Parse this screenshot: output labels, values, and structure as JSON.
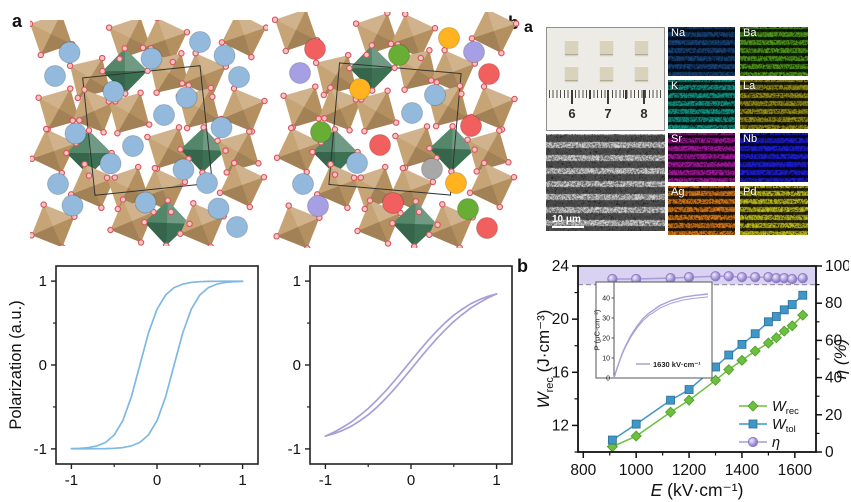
{
  "figure": {
    "left_panel_label": "a",
    "right_panel_label_partial": "b",
    "right_panel_label": "a",
    "chart_panel_label": "b"
  },
  "crystal": {
    "octahedra_color": "#c09a66",
    "octahedra_light": "#dcc094",
    "octahedra_dark": "#9b7848",
    "green_octahedra_color": "#41795a",
    "oxygen_fill": "#f6c2c3",
    "oxygen_stroke": "#d8555c",
    "unit_cell_stroke": "#333333",
    "panel1_a_site_color": "#93badd",
    "panel2_a_site_colors": [
      "#93badd",
      "#f25f5f",
      "#ffb31f",
      "#a79fe3",
      "#a8a8a8",
      "#68ae35"
    ]
  },
  "eds": {
    "photo": {
      "ruler_numbers": [
        "6",
        "7",
        "8"
      ],
      "chip_color": "#d9d2bd"
    },
    "sem": {
      "scale_label": "10 μm"
    },
    "maps": [
      {
        "element": "Na",
        "color": "#1a4882"
      },
      {
        "element": "Ba",
        "color": "#55a21e"
      },
      {
        "element": "K",
        "color": "#12a08e"
      },
      {
        "element": "La",
        "color": "#a0981a"
      },
      {
        "element": "Sr",
        "color": "#b01aaa"
      },
      {
        "element": "Nb",
        "color": "#2020e8"
      },
      {
        "element": "Ag",
        "color": "#e8821a"
      },
      {
        "element": "Pd",
        "color": "#ccc820"
      }
    ]
  },
  "chart_data": [
    {
      "id": "pe_loop_normal",
      "type": "line",
      "ylabel": "Polarization (a.u.)",
      "xlim": [
        -1.18,
        1.18
      ],
      "ylim": [
        -1.18,
        1.18
      ],
      "xticks": [
        -1,
        0,
        1
      ],
      "yticks": [
        -1,
        0,
        1
      ],
      "color": "#7db9e3",
      "x": [
        -1,
        -0.9,
        -0.8,
        -0.7,
        -0.6,
        -0.5,
        -0.4,
        -0.3,
        -0.2,
        -0.1,
        0,
        0.1,
        0.2,
        0.3,
        0.4,
        0.5,
        0.6,
        0.7,
        0.8,
        0.9,
        1
      ],
      "series": [
        {
          "name": "branch_up",
          "y": [
            -0.997,
            -0.993,
            -0.984,
            -0.964,
            -0.922,
            -0.834,
            -0.664,
            -0.38,
            0,
            0.38,
            0.664,
            0.834,
            0.922,
            0.964,
            0.984,
            0.993,
            0.997,
            0.998,
            0.999,
            0.999,
            0.999
          ]
        },
        {
          "name": "branch_down",
          "y": [
            -0.999,
            -0.999,
            -0.999,
            -0.998,
            -0.997,
            -0.993,
            -0.984,
            -0.964,
            -0.922,
            -0.834,
            -0.664,
            -0.38,
            0,
            0.38,
            0.664,
            0.834,
            0.922,
            0.964,
            0.984,
            0.993,
            0.997
          ]
        }
      ]
    },
    {
      "id": "pe_loop_slim",
      "type": "line",
      "ylabel": "",
      "xlim": [
        -1.18,
        1.18
      ],
      "ylim": [
        -1.18,
        1.18
      ],
      "xticks": [
        -1,
        0,
        1
      ],
      "yticks": [
        -1,
        0,
        1
      ],
      "color": "#a89fd8",
      "x": [
        -1,
        -0.9,
        -0.8,
        -0.7,
        -0.6,
        -0.5,
        -0.4,
        -0.3,
        -0.2,
        -0.1,
        0,
        0.1,
        0.2,
        0.3,
        0.4,
        0.5,
        0.6,
        0.7,
        0.8,
        0.9,
        1
      ],
      "series": [
        {
          "name": "branch_up",
          "y": [
            -0.848,
            -0.8,
            -0.744,
            -0.68,
            -0.603,
            -0.518,
            -0.42,
            -0.313,
            -0.197,
            -0.075,
            0.05,
            0.174,
            0.293,
            0.404,
            0.504,
            0.593,
            0.667,
            0.731,
            0.78,
            0.819,
            0.848
          ]
        },
        {
          "name": "branch_down",
          "y": [
            -0.848,
            -0.819,
            -0.78,
            -0.731,
            -0.667,
            -0.593,
            -0.504,
            -0.404,
            -0.293,
            -0.174,
            -0.05,
            0.075,
            0.197,
            0.313,
            0.42,
            0.518,
            0.603,
            0.68,
            0.744,
            0.8,
            0.848
          ]
        }
      ]
    },
    {
      "id": "energy_storage",
      "type": "line",
      "panel_label": "b",
      "xlabel_parts": {
        "pre": "E",
        "post": " (kV·cm⁻¹)"
      },
      "ylabel_left_parts": {
        "pre": "W",
        "sub": "rec",
        "post": " (J·cm⁻³)"
      },
      "ylabel_right": "η (%)",
      "xlim": [
        780,
        1680
      ],
      "ylim_left": [
        10,
        24
      ],
      "ylim_right": [
        0,
        100
      ],
      "xticks": [
        800,
        1000,
        1200,
        1400,
        1600
      ],
      "yticks_left": [
        12,
        16,
        20,
        24
      ],
      "yticks_right": [
        0,
        20,
        40,
        60,
        80,
        100
      ],
      "band_right_axis": [
        90,
        100
      ],
      "band_color": "#d9d2f1",
      "dashed_line_right_axis": 90,
      "x": [
        910,
        1000,
        1130,
        1200,
        1300,
        1350,
        1400,
        1450,
        1500,
        1530,
        1560,
        1590,
        1630
      ],
      "series": [
        {
          "name": "W_rec",
          "axis": "left",
          "marker": "diamond",
          "color": "#6cbf3f",
          "values": [
            10.4,
            11.2,
            13.0,
            13.9,
            15.4,
            16.2,
            16.9,
            17.6,
            18.2,
            18.6,
            19.1,
            19.5,
            20.3
          ]
        },
        {
          "name": "W_tol",
          "axis": "left",
          "marker": "square",
          "color": "#3e97c8",
          "values": [
            10.9,
            12.1,
            13.9,
            14.7,
            16.4,
            17.3,
            18.1,
            18.9,
            19.8,
            20.2,
            20.7,
            21.1,
            21.8
          ]
        },
        {
          "name": "eta",
          "axis": "right",
          "marker": "circle",
          "color": "#a99bd8",
          "values": [
            93,
            93,
            93.5,
            94,
            94.5,
            94.5,
            94,
            94,
            94,
            93.5,
            93.5,
            93,
            93.5
          ]
        }
      ],
      "legend": [
        {
          "main": "W",
          "sub": "rec"
        },
        {
          "main": "W",
          "sub": "tol"
        },
        {
          "main": "η",
          "sub": ""
        }
      ],
      "inset": {
        "ylabel": "P (μC·cm⁻²)",
        "yticks": [
          0,
          10,
          20,
          30,
          40
        ],
        "ylim": [
          0,
          45
        ],
        "xlim": [
          0,
          1700
        ],
        "legend": "1630 kV·cm⁻¹",
        "color": "#a89fd8",
        "x": [
          0,
          50,
          100,
          150,
          200,
          300,
          400,
          500,
          600,
          800,
          1000,
          1200,
          1400,
          1630
        ],
        "y": [
          0,
          4.7,
          8.9,
          12.7,
          16.0,
          21.6,
          26.0,
          29.6,
          32.3,
          36.3,
          38.8,
          40.4,
          41.3,
          42.0
        ]
      }
    }
  ]
}
